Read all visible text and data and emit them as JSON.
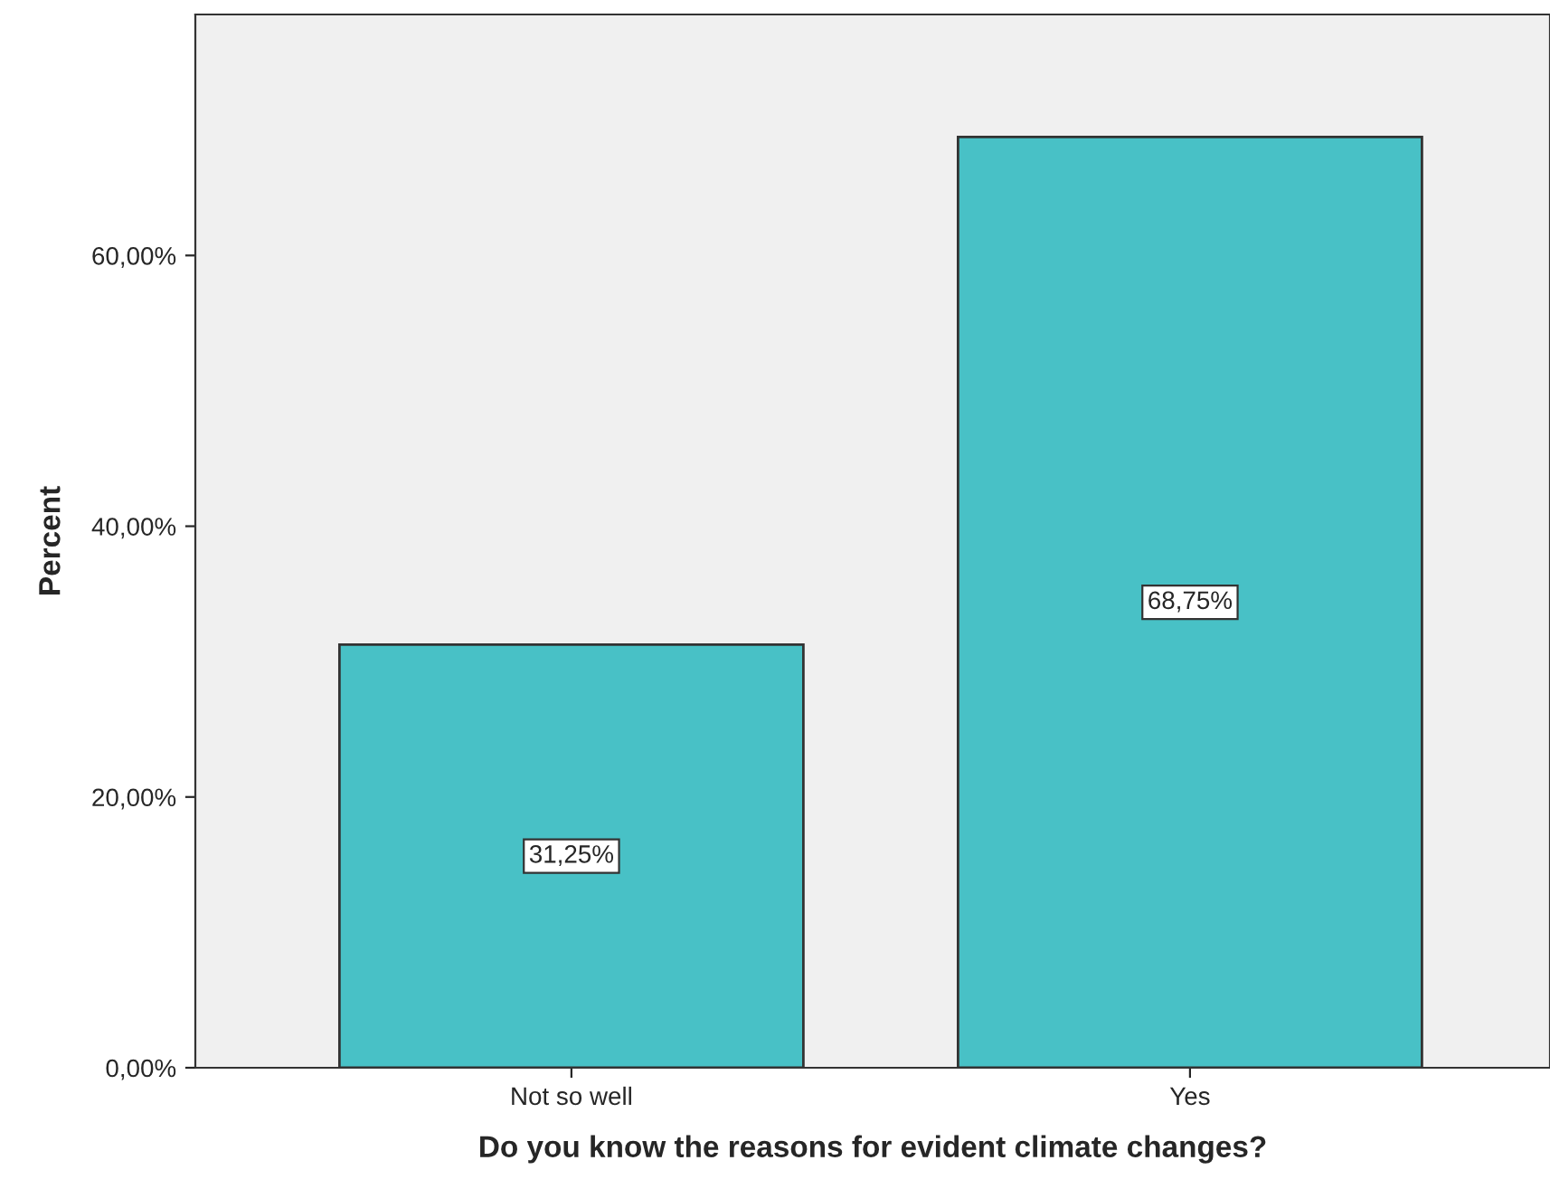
{
  "chart_data": {
    "type": "bar",
    "xlabel": "Do you know the reasons for evident climate changes?",
    "ylabel": "Percent",
    "categories": [
      "Not so well",
      "Yes"
    ],
    "values": [
      31.25,
      68.75
    ],
    "color": "#48c1c6",
    "value_labels": [
      "31,25%",
      "68,75%"
    ],
    "ylim": [
      0,
      77.8
    ],
    "yticks": [
      {
        "value": 0,
        "label": "0,00%"
      },
      {
        "value": 20,
        "label": "20,00%"
      },
      {
        "value": 40,
        "label": "40,00%"
      },
      {
        "value": 60,
        "label": "60,00%"
      }
    ],
    "grid": false,
    "legend": false
  }
}
